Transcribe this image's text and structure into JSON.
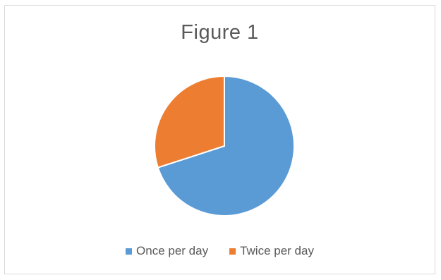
{
  "chart_data": {
    "type": "pie",
    "title": "Figure 1",
    "categories": [
      "Once per day",
      "Twice per day"
    ],
    "values": [
      70,
      30
    ],
    "colors": [
      "#5b9bd5",
      "#ed7d31"
    ],
    "legend_position": "bottom",
    "start_angle_deg": 0
  }
}
